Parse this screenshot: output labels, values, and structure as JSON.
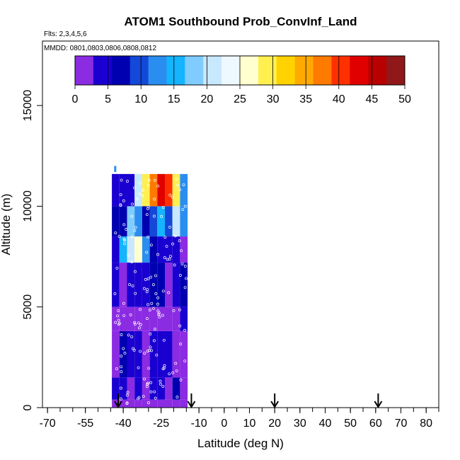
{
  "chart_data": {
    "type": "heatmap",
    "title": "ATOM1 Southbound Prob_ConvInf_Land",
    "subtitle_flights": "Flts: 2,3,4,5,6",
    "subtitle_dates": "MMDD: 0801,0803,0806,0808,0812",
    "xlabel": "Latitude (deg N)",
    "ylabel": "Altitude (m)",
    "xlim": [
      -72,
      85
    ],
    "ylim": [
      0,
      18200
    ],
    "x_ticks": [
      -70,
      -55,
      -40,
      -25,
      -10,
      0,
      10,
      20,
      30,
      40,
      50,
      60,
      70,
      80
    ],
    "y_ticks": [
      0,
      5000,
      10000,
      15000
    ],
    "colorbar": {
      "min": 0,
      "max": 50,
      "ticks": [
        0,
        5,
        10,
        15,
        20,
        25,
        30,
        35,
        40,
        45,
        50
      ],
      "colors": [
        "#8b2be2",
        "#1a00d0",
        "#0000b0",
        "#1448d8",
        "#2a8ef0",
        "#14b4ff",
        "#80ccff",
        "#c8e8ff",
        "#eef8ff",
        "#ffffd0",
        "#fff050",
        "#ffd200",
        "#ffaa00",
        "#ff7a00",
        "#ff3000",
        "#e00000",
        "#b80000",
        "#901818"
      ]
    },
    "grid": false,
    "flight_arrows_lat": [
      -42,
      -13,
      20,
      61
    ],
    "data_x_range": [
      -43.5,
      -13.5
    ],
    "data_y_range": [
      0,
      11600
    ],
    "profiles": [
      {
        "alt_bins": [
          [
            0,
            400
          ],
          [
            400,
            1500
          ],
          [
            1500,
            3800
          ],
          [
            3800,
            5000
          ],
          [
            5000,
            7200
          ],
          [
            7200,
            8500
          ],
          [
            8500,
            10000
          ],
          [
            10000,
            11600
          ]
        ],
        "values_by_lat": [
          {
            "lat": -43,
            "v": [
              2,
              4,
              1,
              1,
              3,
              4,
              6,
              3
            ]
          },
          {
            "lat": -40,
            "v": [
              1,
              3,
              6,
              1,
              2,
              14,
              8,
              4
            ]
          },
          {
            "lat": -37,
            "v": [
              1,
              2,
              5,
              1,
              3,
              20,
              18,
              5
            ]
          },
          {
            "lat": -34,
            "v": [
              2,
              4,
              3,
              2,
              5,
              26,
              12,
              22
            ]
          },
          {
            "lat": -31,
            "v": [
              1,
              1,
              2,
              1,
              4,
              12,
              6,
              30
            ]
          },
          {
            "lat": -28,
            "v": [
              1,
              5,
              3,
              2,
              6,
              8,
              9,
              38
            ]
          },
          {
            "lat": -25,
            "v": [
              1,
              3,
              4,
              1,
              7,
              4,
              16,
              44
            ]
          },
          {
            "lat": -22,
            "v": [
              1,
              2,
              3,
              1,
              2,
              3,
              10,
              40
            ]
          },
          {
            "lat": -19,
            "v": [
              1,
              6,
              2,
              2,
              4,
              5,
              22,
              30
            ]
          },
          {
            "lat": -16,
            "v": [
              1,
              2,
              1,
              5,
              6,
              2,
              12,
              12
            ]
          }
        ]
      }
    ]
  }
}
